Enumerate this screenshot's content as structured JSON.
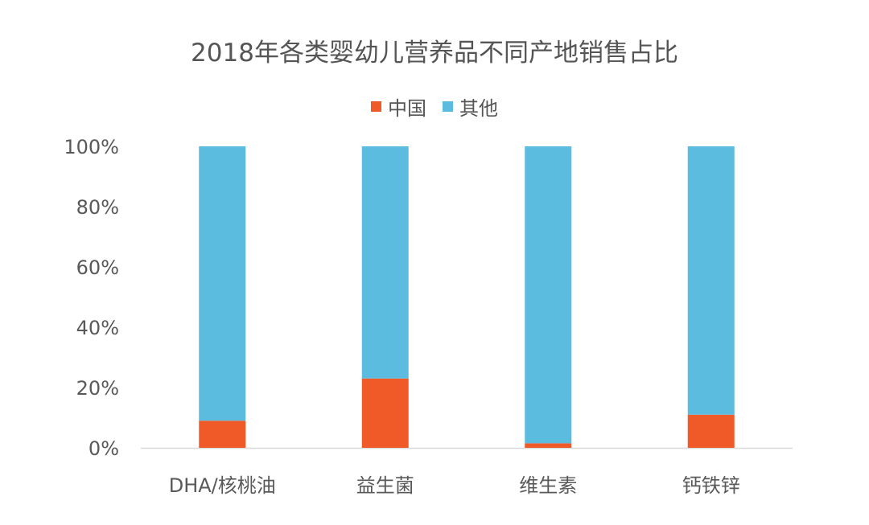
{
  "chart_data": {
    "type": "bar",
    "stacked": true,
    "title": "2018年各类婴幼儿营养品不同产地销售占比",
    "categories": [
      "DHA/核桃油",
      "益生菌",
      "维生素",
      "钙铁锌"
    ],
    "series": [
      {
        "name": "中国",
        "color": "#F05A28",
        "values": [
          9,
          23,
          1.5,
          11
        ]
      },
      {
        "name": "其他",
        "color": "#5BBCE0",
        "values": [
          91,
          77,
          98.5,
          89
        ]
      }
    ],
    "ylim": [
      0,
      100
    ],
    "yticks": [
      "0%",
      "20%",
      "40%",
      "60%",
      "80%",
      "100%"
    ],
    "legend_position": "top",
    "grid": false
  }
}
